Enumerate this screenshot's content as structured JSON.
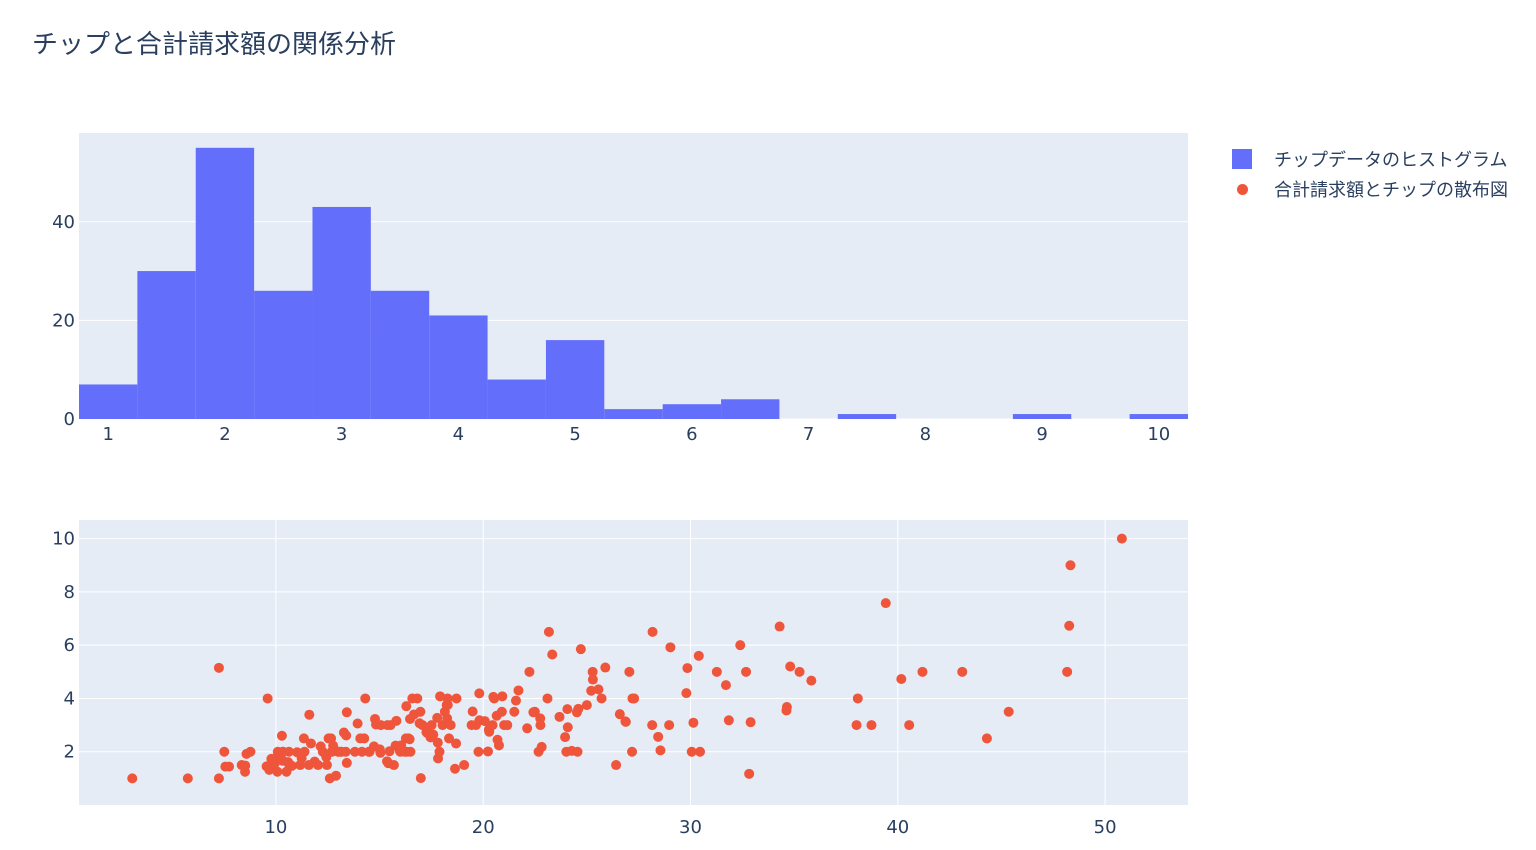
{
  "title": "チップと合計請求額の関係分析",
  "legend": {
    "hist_label": "チップデータのヒストグラム",
    "scatter_label": "合計請求額とチップの散布図"
  },
  "colors": {
    "plot_bg": "#e5ecf6",
    "grid": "#ffffff",
    "hist": "#636efa",
    "scatter": "#ef553b",
    "text": "#2a3f5f"
  },
  "chart_data": [
    {
      "type": "bar",
      "name": "チップデータのヒストグラム",
      "bin_width": 0.5,
      "bin_starts": [
        0.75,
        1.25,
        1.75,
        2.25,
        2.75,
        3.25,
        3.75,
        4.25,
        4.75,
        5.25,
        5.75,
        6.25,
        6.75,
        7.25,
        7.75,
        8.25,
        8.75,
        9.25,
        9.75
      ],
      "values": [
        7,
        30,
        55,
        26,
        43,
        26,
        21,
        8,
        16,
        2,
        3,
        4,
        0,
        1,
        0,
        0,
        1,
        0,
        1
      ],
      "xlim": [
        0.75,
        10.25
      ],
      "ylim": [
        0,
        58
      ],
      "xticks": [
        1,
        2,
        3,
        4,
        5,
        6,
        7,
        8,
        9,
        10
      ],
      "yticks": [
        0,
        20,
        40
      ],
      "grid": true
    },
    {
      "type": "scatter",
      "name": "合計請求額とチップの散布図",
      "xlim": [
        0.5,
        54
      ],
      "ylim": [
        0,
        10.7
      ],
      "xticks": [
        10,
        20,
        30,
        40,
        50
      ],
      "yticks": [
        2,
        4,
        6,
        8,
        10
      ],
      "grid": true,
      "points": [
        [
          3.07,
          1.0
        ],
        [
          5.75,
          1.0
        ],
        [
          7.25,
          1.0
        ],
        [
          7.25,
          5.15
        ],
        [
          7.51,
          2.0
        ],
        [
          7.56,
          1.44
        ],
        [
          7.74,
          1.44
        ],
        [
          8.35,
          1.5
        ],
        [
          8.51,
          1.25
        ],
        [
          8.52,
          1.48
        ],
        [
          8.58,
          1.92
        ],
        [
          8.77,
          2.0
        ],
        [
          9.55,
          1.45
        ],
        [
          9.6,
          4.0
        ],
        [
          9.68,
          1.32
        ],
        [
          9.78,
          1.73
        ],
        [
          9.94,
          1.56
        ],
        [
          10.07,
          1.83
        ],
        [
          10.07,
          1.25
        ],
        [
          10.09,
          2.0
        ],
        [
          10.27,
          1.71
        ],
        [
          10.29,
          2.6
        ],
        [
          10.33,
          1.67
        ],
        [
          10.33,
          2.0
        ],
        [
          10.34,
          1.66
        ],
        [
          10.34,
          2.0
        ],
        [
          10.51,
          1.25
        ],
        [
          10.59,
          1.61
        ],
        [
          10.63,
          2.0
        ],
        [
          10.65,
          1.5
        ],
        [
          10.77,
          1.47
        ],
        [
          11.02,
          1.98
        ],
        [
          11.17,
          1.5
        ],
        [
          11.24,
          1.76
        ],
        [
          11.35,
          2.5
        ],
        [
          11.38,
          2.0
        ],
        [
          11.59,
          1.5
        ],
        [
          11.61,
          3.39
        ],
        [
          11.69,
          2.31
        ],
        [
          11.87,
          1.63
        ],
        [
          12.03,
          1.5
        ],
        [
          12.16,
          2.2
        ],
        [
          12.26,
          2.0
        ],
        [
          12.43,
          1.8
        ],
        [
          12.46,
          1.5
        ],
        [
          12.54,
          2.5
        ],
        [
          12.6,
          1.0
        ],
        [
          12.66,
          2.5
        ],
        [
          12.69,
          2.0
        ],
        [
          12.74,
          2.01
        ],
        [
          12.76,
          2.23
        ],
        [
          12.9,
          1.1
        ],
        [
          13.0,
          2.0
        ],
        [
          13.03,
          2.0
        ],
        [
          13.13,
          2.0
        ],
        [
          13.16,
          2.0
        ],
        [
          13.28,
          2.72
        ],
        [
          13.37,
          2.0
        ],
        [
          13.39,
          2.61
        ],
        [
          13.42,
          3.48
        ],
        [
          13.42,
          1.58
        ],
        [
          13.81,
          2.0
        ],
        [
          13.94,
          3.06
        ],
        [
          14.07,
          2.5
        ],
        [
          14.15,
          2.0
        ],
        [
          14.26,
          2.5
        ],
        [
          14.31,
          4.0
        ],
        [
          14.48,
          2.0
        ],
        [
          14.52,
          2.0
        ],
        [
          14.73,
          2.2
        ],
        [
          14.78,
          3.23
        ],
        [
          14.83,
          3.02
        ],
        [
          15.01,
          2.09
        ],
        [
          15.04,
          1.96
        ],
        [
          15.06,
          3.0
        ],
        [
          15.36,
          1.64
        ],
        [
          15.38,
          3.0
        ],
        [
          15.42,
          1.57
        ],
        [
          15.48,
          2.02
        ],
        [
          15.53,
          3.0
        ],
        [
          15.69,
          1.5
        ],
        [
          15.77,
          2.23
        ],
        [
          15.81,
          3.16
        ],
        [
          15.98,
          2.03
        ],
        [
          16.0,
          2.0
        ],
        [
          16.04,
          2.24
        ],
        [
          16.21,
          2.0
        ],
        [
          16.27,
          2.5
        ],
        [
          16.29,
          3.71
        ],
        [
          16.31,
          2.0
        ],
        [
          16.4,
          2.5
        ],
        [
          16.45,
          2.47
        ],
        [
          16.47,
          3.23
        ],
        [
          16.49,
          2.0
        ],
        [
          16.58,
          4.0
        ],
        [
          16.66,
          3.4
        ],
        [
          16.82,
          4.0
        ],
        [
          16.93,
          3.07
        ],
        [
          16.97,
          3.5
        ],
        [
          16.99,
          1.01
        ],
        [
          17.07,
          3.0
        ],
        [
          17.26,
          2.74
        ],
        [
          17.29,
          2.71
        ],
        [
          17.46,
          2.54
        ],
        [
          17.51,
          3.0
        ],
        [
          17.59,
          2.64
        ],
        [
          17.78,
          3.27
        ],
        [
          17.81,
          2.34
        ],
        [
          17.82,
          1.75
        ],
        [
          17.89,
          2.0
        ],
        [
          17.92,
          4.08
        ],
        [
          18.04,
          3.0
        ],
        [
          18.15,
          3.5
        ],
        [
          18.24,
          3.76
        ],
        [
          18.26,
          3.25
        ],
        [
          18.28,
          4.0
        ],
        [
          18.29,
          3.76
        ],
        [
          18.35,
          2.5
        ],
        [
          18.43,
          3.0
        ],
        [
          18.64,
          1.36
        ],
        [
          18.69,
          2.31
        ],
        [
          18.71,
          4.0
        ],
        [
          19.08,
          1.5
        ],
        [
          19.44,
          3.0
        ],
        [
          19.49,
          3.51
        ],
        [
          19.65,
          3.0
        ],
        [
          19.77,
          2.0
        ],
        [
          19.81,
          4.19
        ],
        [
          19.82,
          3.18
        ],
        [
          20.08,
          3.15
        ],
        [
          20.23,
          2.01
        ],
        [
          20.27,
          2.83
        ],
        [
          20.29,
          2.75
        ],
        [
          20.45,
          3.0
        ],
        [
          20.49,
          4.06
        ],
        [
          20.53,
          4.0
        ],
        [
          20.65,
          3.35
        ],
        [
          20.69,
          2.45
        ],
        [
          20.76,
          2.24
        ],
        [
          20.9,
          3.5
        ],
        [
          20.92,
          4.08
        ],
        [
          21.01,
          3.0
        ],
        [
          21.16,
          3.0
        ],
        [
          21.5,
          3.5
        ],
        [
          21.58,
          3.92
        ],
        [
          21.7,
          4.3
        ],
        [
          22.12,
          2.88
        ],
        [
          22.23,
          5.0
        ],
        [
          22.42,
          3.48
        ],
        [
          22.49,
          3.5
        ],
        [
          22.67,
          2.0
        ],
        [
          22.75,
          3.25
        ],
        [
          22.76,
          3.0
        ],
        [
          22.82,
          2.18
        ],
        [
          23.1,
          4.0
        ],
        [
          23.17,
          6.5
        ],
        [
          23.33,
          5.65
        ],
        [
          23.68,
          3.31
        ],
        [
          23.95,
          2.55
        ],
        [
          24.01,
          2.0
        ],
        [
          24.06,
          3.6
        ],
        [
          24.08,
          2.92
        ],
        [
          24.27,
          2.03
        ],
        [
          24.52,
          3.48
        ],
        [
          24.55,
          2.0
        ],
        [
          24.59,
          3.61
        ],
        [
          24.71,
          5.85
        ],
        [
          25.0,
          3.75
        ],
        [
          25.21,
          4.29
        ],
        [
          25.28,
          5.0
        ],
        [
          25.29,
          4.71
        ],
        [
          25.56,
          4.34
        ],
        [
          25.71,
          4.0
        ],
        [
          25.89,
          5.16
        ],
        [
          26.41,
          1.5
        ],
        [
          26.59,
          3.41
        ],
        [
          26.86,
          3.14
        ],
        [
          26.88,
          3.12
        ],
        [
          27.05,
          5.0
        ],
        [
          27.18,
          2.0
        ],
        [
          27.2,
          4.0
        ],
        [
          27.28,
          4.0
        ],
        [
          28.15,
          3.0
        ],
        [
          28.17,
          6.5
        ],
        [
          28.44,
          2.56
        ],
        [
          28.55,
          2.05
        ],
        [
          28.97,
          3.0
        ],
        [
          29.03,
          5.92
        ],
        [
          29.8,
          4.2
        ],
        [
          29.85,
          5.14
        ],
        [
          30.06,
          2.0
        ],
        [
          30.14,
          3.09
        ],
        [
          30.4,
          5.6
        ],
        [
          30.46,
          2.0
        ],
        [
          31.27,
          5.0
        ],
        [
          31.71,
          4.5
        ],
        [
          31.85,
          3.18
        ],
        [
          32.4,
          6.0
        ],
        [
          32.68,
          5.0
        ],
        [
          32.83,
          1.17
        ],
        [
          32.9,
          3.11
        ],
        [
          34.3,
          6.7
        ],
        [
          34.63,
          3.55
        ],
        [
          34.65,
          3.68
        ],
        [
          34.81,
          5.2
        ],
        [
          35.26,
          5.0
        ],
        [
          35.83,
          4.67
        ],
        [
          38.01,
          3.0
        ],
        [
          38.07,
          4.0
        ],
        [
          38.73,
          3.0
        ],
        [
          39.42,
          7.58
        ],
        [
          40.17,
          4.73
        ],
        [
          40.55,
          3.0
        ],
        [
          41.19,
          5.0
        ],
        [
          43.11,
          5.0
        ],
        [
          44.3,
          2.5
        ],
        [
          45.35,
          3.5
        ],
        [
          48.17,
          5.0
        ],
        [
          48.27,
          6.73
        ],
        [
          48.33,
          9.0
        ],
        [
          50.81,
          10.0
        ]
      ]
    }
  ]
}
